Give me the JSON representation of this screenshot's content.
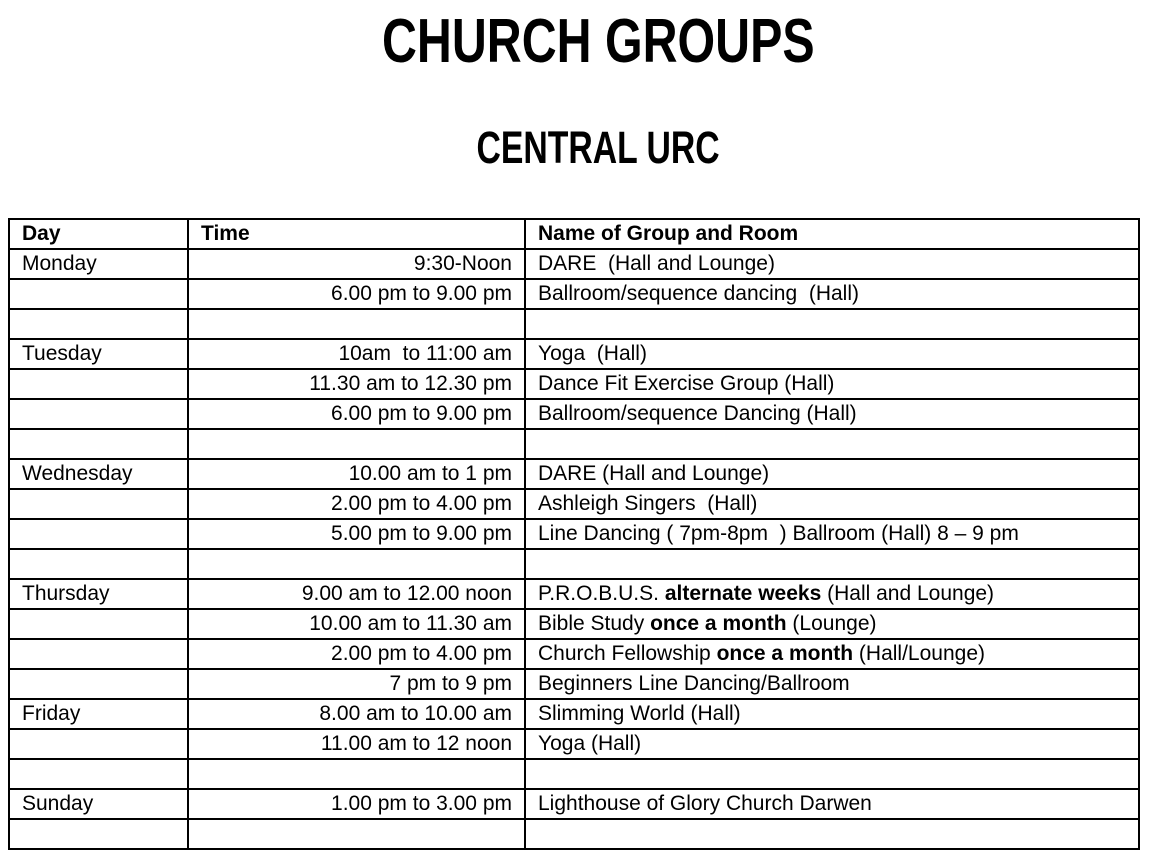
{
  "header": {
    "title": "CHURCH GROUPS",
    "subtitle": "CENTRAL URC"
  },
  "colors": {
    "text": "#000000",
    "background": "#ffffff",
    "table_border": "#000000"
  },
  "table": {
    "columns": [
      "Day",
      "Time",
      "Name of Group and Room"
    ],
    "rows": [
      {
        "day": "Monday",
        "time": "9:30-Noon",
        "parts": [
          {
            "t": "DARE  (Hall and Lounge)",
            "b": false
          }
        ]
      },
      {
        "day": "",
        "time": "6.00 pm to 9.00 pm",
        "parts": [
          {
            "t": "Ballroom/sequence dancing  (Hall)",
            "b": false
          }
        ]
      },
      {
        "day": "",
        "time": "",
        "parts": []
      },
      {
        "day": "Tuesday",
        "time": "10am  to 11:00 am",
        "parts": [
          {
            "t": "Yoga  (Hall)",
            "b": false
          }
        ]
      },
      {
        "day": "",
        "time": "11.30 am to 12.30 pm",
        "parts": [
          {
            "t": "Dance Fit Exercise Group (Hall)",
            "b": false
          }
        ]
      },
      {
        "day": "",
        "time": "6.00 pm to 9.00 pm",
        "parts": [
          {
            "t": "Ballroom/sequence Dancing (Hall)",
            "b": false
          }
        ]
      },
      {
        "day": "",
        "time": "",
        "parts": []
      },
      {
        "day": "Wednesday",
        "time": "10.00 am to 1 pm",
        "parts": [
          {
            "t": "DARE (Hall and Lounge)",
            "b": false
          }
        ]
      },
      {
        "day": "",
        "time": "2.00 pm to 4.00 pm",
        "parts": [
          {
            "t": "Ashleigh Singers  (Hall)",
            "b": false
          }
        ]
      },
      {
        "day": "",
        "time": "5.00 pm to 9.00 pm",
        "parts": [
          {
            "t": "Line Dancing ( 7pm-8pm  ) Ballroom (Hall) 8 – 9 pm",
            "b": false
          }
        ]
      },
      {
        "day": "",
        "time": "",
        "parts": []
      },
      {
        "day": "Thursday",
        "time": "9.00 am to 12.00 noon",
        "parts": [
          {
            "t": "P.R.O.B.U.S. ",
            "b": false
          },
          {
            "t": "alternate weeks",
            "b": true
          },
          {
            "t": " (Hall and Lounge)",
            "b": false
          }
        ]
      },
      {
        "day": "",
        "time": "10.00 am to 11.30 am",
        "parts": [
          {
            "t": "Bible Study ",
            "b": false
          },
          {
            "t": "once a month",
            "b": true
          },
          {
            "t": " (Lounge)",
            "b": false
          }
        ]
      },
      {
        "day": "",
        "time": "2.00 pm to 4.00 pm",
        "parts": [
          {
            "t": "Church Fellowship ",
            "b": false
          },
          {
            "t": "once a month",
            "b": true
          },
          {
            "t": " (Hall/Lounge)",
            "b": false
          }
        ]
      },
      {
        "day": "",
        "time": "7 pm to 9 pm",
        "parts": [
          {
            "t": "Beginners Line Dancing/Ballroom",
            "b": false
          }
        ]
      },
      {
        "day": "Friday",
        "time": "8.00 am to 10.00 am",
        "parts": [
          {
            "t": "Slimming World (Hall)",
            "b": false
          }
        ]
      },
      {
        "day": "",
        "time": "11.00 am to 12 noon",
        "parts": [
          {
            "t": "Yoga (Hall)",
            "b": false
          }
        ]
      },
      {
        "day": "",
        "time": "",
        "parts": []
      },
      {
        "day": "Sunday",
        "time": "1.00 pm to 3.00 pm",
        "parts": [
          {
            "t": "Lighthouse of Glory Church Darwen",
            "b": false
          }
        ]
      },
      {
        "day": "",
        "time": "",
        "parts": []
      }
    ]
  }
}
